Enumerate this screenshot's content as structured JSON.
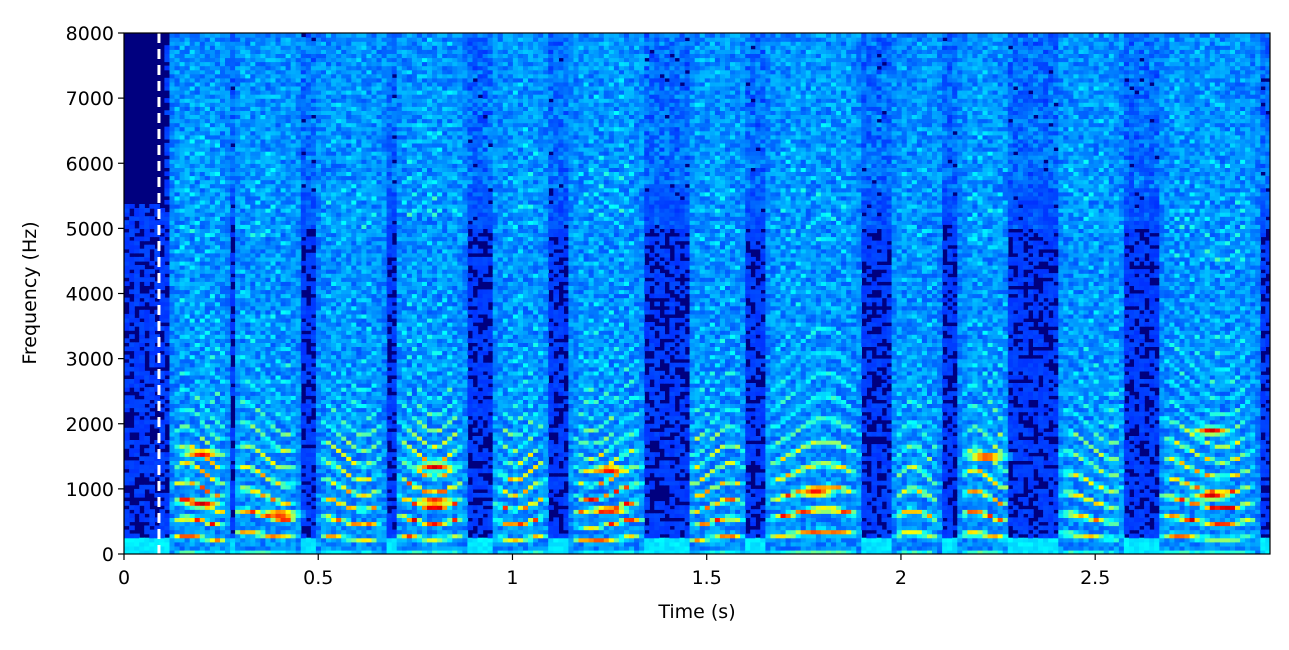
{
  "chart_data": {
    "type": "heatmap",
    "subtype": "spectrogram",
    "title": "",
    "xlabel": "Time (s)",
    "ylabel": "Frequency (Hz)",
    "xlim": [
      0,
      2.95
    ],
    "ylim": [
      0,
      8000
    ],
    "x_ticks": [
      0,
      0.5,
      1,
      1.5,
      2,
      2.5
    ],
    "x_tick_labels": [
      "0",
      "0.5",
      "1",
      "1.5",
      "2",
      "2.5"
    ],
    "y_ticks": [
      0,
      1000,
      2000,
      3000,
      4000,
      5000,
      6000,
      7000,
      8000
    ],
    "y_tick_labels": [
      "0",
      "1000",
      "2000",
      "3000",
      "4000",
      "5000",
      "6000",
      "7000",
      "8000"
    ],
    "colormap": "jet",
    "grid": false,
    "annotations": [
      {
        "type": "vertical-dashed-line",
        "x": 0.09,
        "color": "#ffffff"
      }
    ],
    "voiced_segments": [
      {
        "start": 0.12,
        "end": 0.27,
        "f0": 250,
        "energy": 0.95,
        "upper_hz": 4500
      },
      {
        "start": 0.28,
        "end": 0.45,
        "f0": 300,
        "energy": 0.85,
        "upper_hz": 4800
      },
      {
        "start": 0.5,
        "end": 0.67,
        "f0": 260,
        "energy": 0.8,
        "upper_hz": 5000
      },
      {
        "start": 0.7,
        "end": 0.88,
        "f0": 270,
        "energy": 1.0,
        "upper_hz": 5200
      },
      {
        "start": 0.95,
        "end": 1.09,
        "f0": 260,
        "energy": 0.85,
        "upper_hz": 5000
      },
      {
        "start": 1.15,
        "end": 1.34,
        "f0": 240,
        "energy": 0.95,
        "upper_hz": 5100
      },
      {
        "start": 1.45,
        "end": 1.6,
        "f0": 250,
        "energy": 0.85,
        "upper_hz": 4600
      },
      {
        "start": 1.65,
        "end": 1.9,
        "f0": 310,
        "energy": 0.9,
        "upper_hz": 4800
      },
      {
        "start": 1.98,
        "end": 2.1,
        "f0": 300,
        "energy": 0.7,
        "upper_hz": 4400
      },
      {
        "start": 2.15,
        "end": 2.28,
        "f0": 290,
        "energy": 0.85,
        "upper_hz": 4700
      },
      {
        "start": 2.4,
        "end": 2.58,
        "f0": 280,
        "energy": 0.75,
        "upper_hz": 5000
      },
      {
        "start": 2.66,
        "end": 2.92,
        "f0": 270,
        "energy": 0.95,
        "upper_hz": 4500
      }
    ],
    "strong_formants": [
      {
        "t": 0.2,
        "hz": 1550
      },
      {
        "t": 0.2,
        "hz": 780
      },
      {
        "t": 0.4,
        "hz": 620
      },
      {
        "t": 0.8,
        "hz": 820
      },
      {
        "t": 0.8,
        "hz": 1350
      },
      {
        "t": 1.25,
        "hz": 680
      },
      {
        "t": 1.25,
        "hz": 1300
      },
      {
        "t": 1.78,
        "hz": 950
      },
      {
        "t": 2.22,
        "hz": 1500
      },
      {
        "t": 2.8,
        "hz": 1900
      },
      {
        "t": 2.8,
        "hz": 900
      }
    ]
  }
}
